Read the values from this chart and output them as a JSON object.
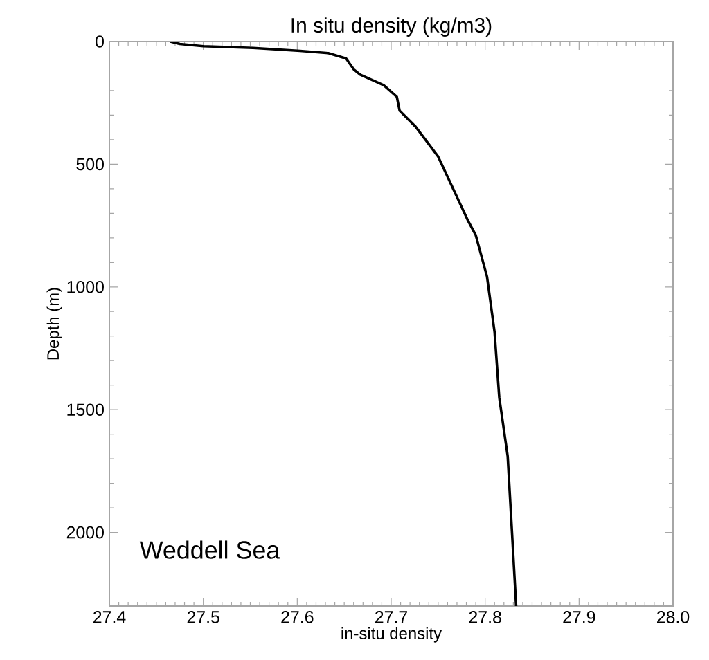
{
  "chart_data": {
    "type": "line",
    "title": "In situ density (kg/m3)",
    "xlabel": "in-situ density",
    "ylabel": "Depth (m)",
    "annotations": [
      "Weddell Sea"
    ],
    "series": [
      {
        "color": "#000000",
        "x": [
          27.465,
          27.475,
          27.5,
          27.553,
          27.603,
          27.633,
          27.652,
          27.66,
          27.667,
          27.692,
          27.706,
          27.709,
          27.726,
          27.75,
          27.782,
          27.79,
          27.802,
          27.81,
          27.815,
          27.824,
          27.833
        ],
        "values": [
          0,
          10,
          19,
          26,
          38,
          47,
          69,
          113,
          135,
          178,
          225,
          282,
          347,
          469,
          732,
          789,
          958,
          1183,
          1450,
          1690,
          2300
        ]
      }
    ],
    "xlim": [
      27.4,
      28.0
    ],
    "ylim": [
      2300,
      0
    ],
    "xticks": [
      27.4,
      27.5,
      27.6,
      27.7,
      27.8,
      27.9,
      {
        "value": 28.0,
        "label": "28.0"
      }
    ],
    "yticks": [
      0,
      500,
      1000,
      1500,
      2000
    ],
    "grid": false,
    "marker": "none",
    "line_style": "solid"
  }
}
